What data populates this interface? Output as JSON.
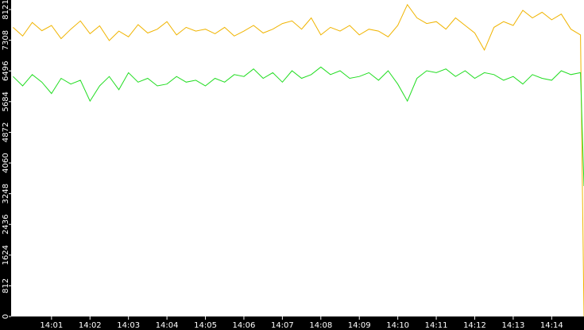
{
  "chart_data": {
    "type": "line",
    "x": [
      0,
      0.25,
      0.5,
      0.75,
      1,
      1.25,
      1.5,
      1.75,
      2,
      2.25,
      2.5,
      2.75,
      3,
      3.25,
      3.5,
      3.75,
      4,
      4.25,
      4.5,
      4.75,
      5,
      5.25,
      5.5,
      5.75,
      6,
      6.25,
      6.5,
      6.75,
      7,
      7.25,
      7.5,
      7.75,
      8,
      8.25,
      8.5,
      8.75,
      9,
      9.25,
      9.5,
      9.75,
      10,
      10.25,
      10.5,
      10.75,
      11,
      11.25,
      11.5,
      11.75,
      12,
      12.25,
      12.5,
      12.75,
      13,
      13.25,
      13.5,
      13.75,
      14,
      14.25,
      14.5,
      14.75,
      14.84
    ],
    "series": [
      {
        "color": "#f0b400",
        "values": [
          7650,
          7420,
          7780,
          7560,
          7700,
          7350,
          7600,
          7820,
          7480,
          7690,
          7300,
          7550,
          7400,
          7720,
          7500,
          7600,
          7800,
          7450,
          7650,
          7550,
          7600,
          7480,
          7650,
          7420,
          7550,
          7700,
          7500,
          7600,
          7750,
          7820,
          7600,
          7900,
          7450,
          7650,
          7550,
          7700,
          7450,
          7600,
          7550,
          7400,
          7700,
          8250,
          7900,
          7750,
          7800,
          7600,
          7900,
          7700,
          7500,
          7050,
          7650,
          7800,
          7700,
          8100,
          7900,
          8050,
          7850,
          8000,
          7600,
          7450,
          0
        ]
      },
      {
        "color": "#22dd22",
        "values": [
          6350,
          6100,
          6400,
          6200,
          5900,
          6300,
          6150,
          6250,
          5700,
          6100,
          6350,
          6000,
          6450,
          6200,
          6300,
          6100,
          6150,
          6350,
          6200,
          6250,
          6100,
          6300,
          6200,
          6400,
          6350,
          6550,
          6300,
          6450,
          6200,
          6500,
          6300,
          6400,
          6600,
          6400,
          6500,
          6300,
          6350,
          6450,
          6250,
          6500,
          6150,
          5700,
          6300,
          6500,
          6450,
          6550,
          6350,
          6500,
          6300,
          6450,
          6400,
          6250,
          6350,
          6150,
          6400,
          6300,
          6250,
          6500,
          6400,
          6450,
          3450
        ]
      }
    ],
    "xlim": [
      -0.05,
      14.84
    ],
    "ylim": [
      0,
      8373
    ],
    "xticks": [
      {
        "value": 1,
        "label": "14:01"
      },
      {
        "value": 2,
        "label": "14:02"
      },
      {
        "value": 3,
        "label": "14:03"
      },
      {
        "value": 4,
        "label": "14:04"
      },
      {
        "value": 5,
        "label": "14:05"
      },
      {
        "value": 6,
        "label": "14:06"
      },
      {
        "value": 7,
        "label": "14:07"
      },
      {
        "value": 8,
        "label": "14:08"
      },
      {
        "value": 9,
        "label": "14:09"
      },
      {
        "value": 10,
        "label": "14:10"
      },
      {
        "value": 11,
        "label": "14:11"
      },
      {
        "value": 12,
        "label": "14:12"
      },
      {
        "value": 13,
        "label": "14:13"
      },
      {
        "value": 14,
        "label": "14:14"
      }
    ],
    "yticks": [
      0,
      812,
      1624,
      2436,
      3248,
      4060,
      4872,
      5684,
      6496,
      7308,
      8121
    ]
  }
}
